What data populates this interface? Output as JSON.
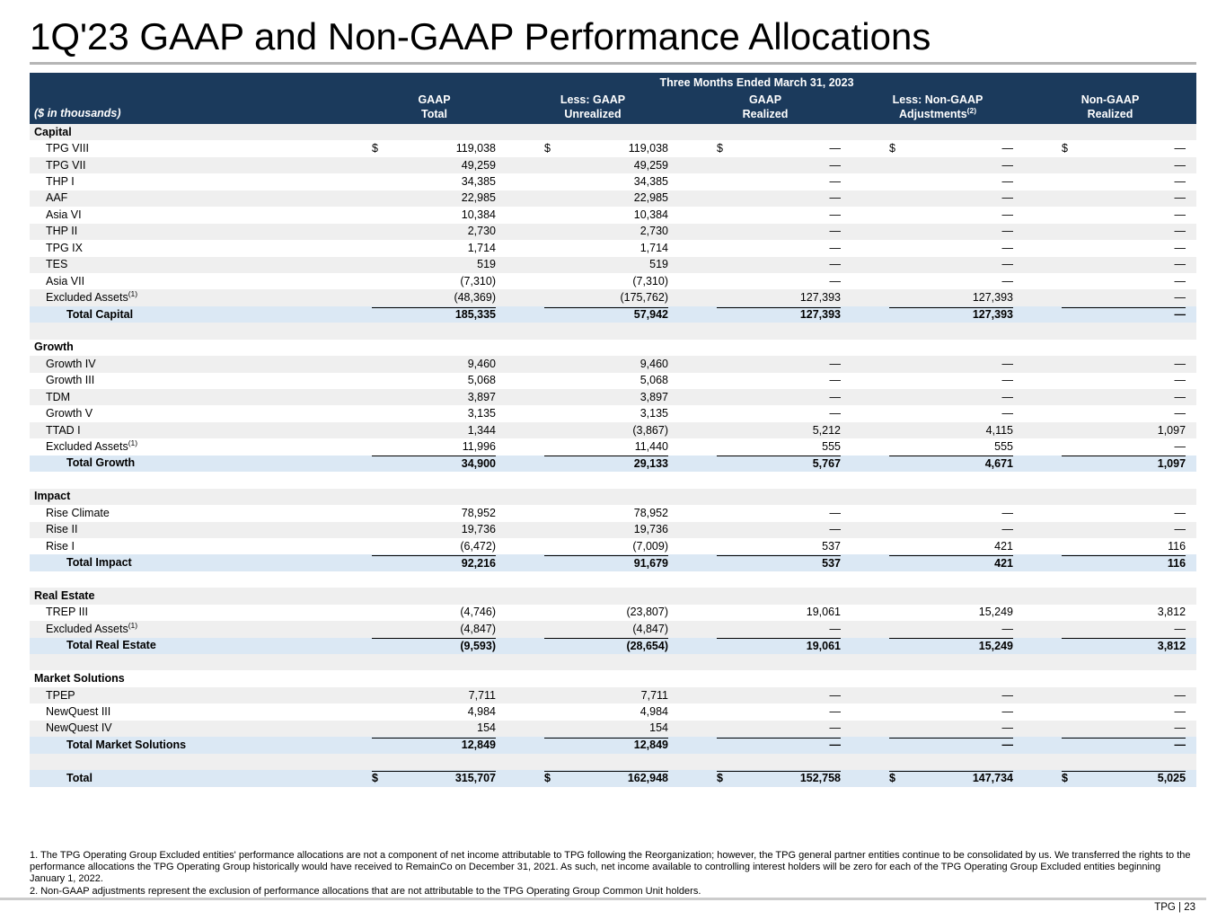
{
  "title": "1Q'23 GAAP and Non-GAAP Performance Allocations",
  "colors": {
    "header_bg": "#1b3a5c",
    "stripe": "#efefef",
    "total_bg": "#dbe8f4",
    "title_rule": "#b5b5b5",
    "footer_rule": "#cccccc"
  },
  "table": {
    "span_header": "Three Months Ended March 31, 2023",
    "row_label_header": "($ in thousands)",
    "currency_symbol": "$",
    "dash": "—",
    "columns": [
      {
        "line1": "GAAP",
        "line2": "Total",
        "line2_sup": ""
      },
      {
        "line1": "Less: GAAP",
        "line2": "Unrealized",
        "line2_sup": ""
      },
      {
        "line1": "GAAP",
        "line2": "Realized",
        "line2_sup": ""
      },
      {
        "line1": "Less: Non-GAAP",
        "line2": "Adjustments",
        "line2_sup": "(2)"
      },
      {
        "line1": "Non-GAAP",
        "line2": "Realized",
        "line2_sup": ""
      }
    ],
    "sections": [
      {
        "name": "Capital",
        "rows": [
          {
            "label": "TPG VIII",
            "sup": "",
            "dollar": true,
            "values": [
              "119,038",
              "119,038",
              "—",
              "—",
              "—"
            ]
          },
          {
            "label": "TPG VII",
            "sup": "",
            "dollar": false,
            "values": [
              "49,259",
              "49,259",
              "—",
              "—",
              "—"
            ]
          },
          {
            "label": "THP I",
            "sup": "",
            "dollar": false,
            "values": [
              "34,385",
              "34,385",
              "—",
              "—",
              "—"
            ]
          },
          {
            "label": "AAF",
            "sup": "",
            "dollar": false,
            "values": [
              "22,985",
              "22,985",
              "—",
              "—",
              "—"
            ]
          },
          {
            "label": "Asia VI",
            "sup": "",
            "dollar": false,
            "values": [
              "10,384",
              "10,384",
              "—",
              "—",
              "—"
            ]
          },
          {
            "label": "THP II",
            "sup": "",
            "dollar": false,
            "values": [
              "2,730",
              "2,730",
              "—",
              "—",
              "—"
            ]
          },
          {
            "label": "TPG IX",
            "sup": "",
            "dollar": false,
            "values": [
              "1,714",
              "1,714",
              "—",
              "—",
              "—"
            ]
          },
          {
            "label": "TES",
            "sup": "",
            "dollar": false,
            "values": [
              "519",
              "519",
              "—",
              "—",
              "—"
            ]
          },
          {
            "label": "Asia VII",
            "sup": "",
            "dollar": false,
            "values": [
              "(7,310)",
              "(7,310)",
              "—",
              "—",
              "—"
            ]
          },
          {
            "label": "Excluded Assets",
            "sup": "(1)",
            "dollar": false,
            "values": [
              "(48,369)",
              "(175,762)",
              "127,393",
              "127,393",
              "—"
            ]
          }
        ],
        "total": {
          "label": "Total Capital",
          "values": [
            "185,335",
            "57,942",
            "127,393",
            "127,393",
            "—"
          ]
        }
      },
      {
        "name": "Growth",
        "rows": [
          {
            "label": "Growth IV",
            "sup": "",
            "dollar": false,
            "values": [
              "9,460",
              "9,460",
              "—",
              "—",
              "—"
            ]
          },
          {
            "label": "Growth III",
            "sup": "",
            "dollar": false,
            "values": [
              "5,068",
              "5,068",
              "—",
              "—",
              "—"
            ]
          },
          {
            "label": "TDM",
            "sup": "",
            "dollar": false,
            "values": [
              "3,897",
              "3,897",
              "—",
              "—",
              "—"
            ]
          },
          {
            "label": "Growth V",
            "sup": "",
            "dollar": false,
            "values": [
              "3,135",
              "3,135",
              "—",
              "—",
              "—"
            ]
          },
          {
            "label": "TTAD I",
            "sup": "",
            "dollar": false,
            "values": [
              "1,344",
              "(3,867)",
              "5,212",
              "4,115",
              "1,097"
            ]
          },
          {
            "label": "Excluded Assets",
            "sup": "(1)",
            "dollar": false,
            "values": [
              "11,996",
              "11,440",
              "555",
              "555",
              "—"
            ]
          }
        ],
        "total": {
          "label": "Total Growth",
          "values": [
            "34,900",
            "29,133",
            "5,767",
            "4,671",
            "1,097"
          ]
        }
      },
      {
        "name": "Impact",
        "rows": [
          {
            "label": "Rise Climate",
            "sup": "",
            "dollar": false,
            "values": [
              "78,952",
              "78,952",
              "—",
              "—",
              "—"
            ]
          },
          {
            "label": "Rise II",
            "sup": "",
            "dollar": false,
            "values": [
              "19,736",
              "19,736",
              "—",
              "—",
              "—"
            ]
          },
          {
            "label": "Rise I",
            "sup": "",
            "dollar": false,
            "values": [
              "(6,472)",
              "(7,009)",
              "537",
              "421",
              "116"
            ]
          }
        ],
        "total": {
          "label": "Total Impact",
          "values": [
            "92,216",
            "91,679",
            "537",
            "421",
            "116"
          ]
        }
      },
      {
        "name": "Real Estate",
        "rows": [
          {
            "label": "TREP III",
            "sup": "",
            "dollar": false,
            "values": [
              "(4,746)",
              "(23,807)",
              "19,061",
              "15,249",
              "3,812"
            ]
          },
          {
            "label": "Excluded Assets",
            "sup": "(1)",
            "dollar": false,
            "values": [
              "(4,847)",
              "(4,847)",
              "—",
              "—",
              "—"
            ]
          }
        ],
        "total": {
          "label": "Total Real Estate",
          "values": [
            "(9,593)",
            "(28,654)",
            "19,061",
            "15,249",
            "3,812"
          ]
        }
      },
      {
        "name": "Market Solutions",
        "rows": [
          {
            "label": "TPEP",
            "sup": "",
            "dollar": false,
            "values": [
              "7,711",
              "7,711",
              "—",
              "—",
              "—"
            ]
          },
          {
            "label": "NewQuest III",
            "sup": "",
            "dollar": false,
            "values": [
              "4,984",
              "4,984",
              "—",
              "—",
              "—"
            ]
          },
          {
            "label": "NewQuest IV",
            "sup": "",
            "dollar": false,
            "values": [
              "154",
              "154",
              "—",
              "—",
              "—"
            ]
          }
        ],
        "total": {
          "label": "Total Market Solutions",
          "values": [
            "12,849",
            "12,849",
            "—",
            "—",
            "—"
          ]
        }
      }
    ],
    "grand_total": {
      "label": "Total",
      "dollar": true,
      "values": [
        "315,707",
        "162,948",
        "152,758",
        "147,734",
        "5,025"
      ]
    }
  },
  "footnotes": [
    "1. The TPG Operating Group Excluded entities' performance allocations are not a component of net income attributable to TPG following the Reorganization; however, the TPG general partner entities continue to be consolidated by us. We transferred the rights to the performance allocations the TPG Operating Group historically would have received to RemainCo on December 31, 2021. As such, net income available to controlling interest holders will be zero for each of the TPG Operating Group Excluded entities beginning January 1, 2022.",
    "2. Non-GAAP adjustments represent the exclusion of performance allocations that are not attributable to the TPG Operating Group Common Unit holders."
  ],
  "footer": {
    "page_label": "TPG | 23"
  }
}
